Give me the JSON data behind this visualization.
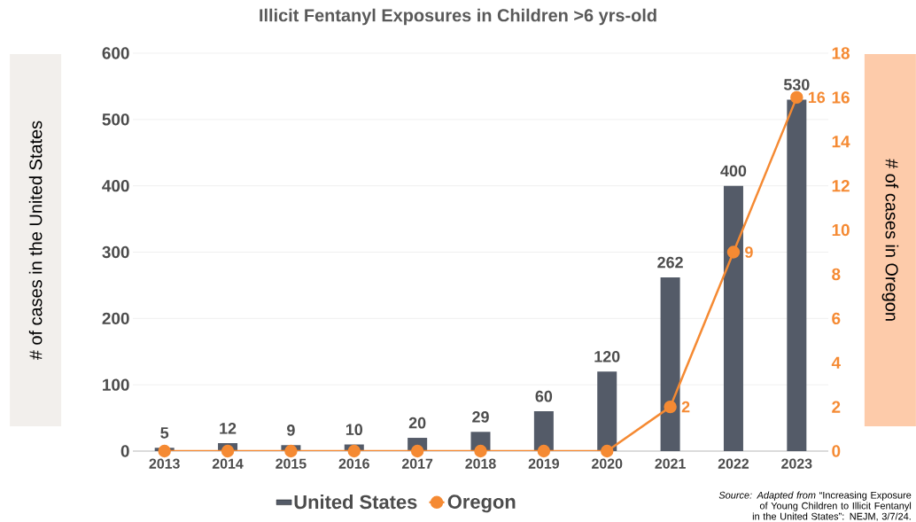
{
  "chart_data": {
    "type": "bar",
    "title": "Illicit Fentanyl Exposures in Children >6 yrs-old",
    "categories": [
      "2013",
      "2014",
      "2015",
      "2016",
      "2017",
      "2018",
      "2019",
      "2020",
      "2021",
      "2022",
      "2023"
    ],
    "series": [
      {
        "name": "United States",
        "color": "#545b68",
        "values": [
          5,
          12,
          9,
          10,
          20,
          29,
          60,
          120,
          262,
          400,
          530
        ],
        "value_labels": [
          "5",
          "12",
          "9",
          "10",
          "20",
          "29",
          "60",
          "120",
          "262",
          "400",
          "530"
        ]
      },
      {
        "name": "Oregon",
        "type": "line",
        "axis": "y2",
        "color": "#f58a33",
        "marker": "circle",
        "values": [
          0,
          0,
          0,
          0,
          0,
          0,
          0,
          0,
          2,
          9,
          16
        ],
        "value_labels": [
          null,
          null,
          null,
          null,
          null,
          null,
          null,
          null,
          "2",
          "9",
          "16"
        ]
      }
    ],
    "ylabel": "# of cases in the United States",
    "y2label": "# of cases in Oregon",
    "ylim": [
      0,
      600
    ],
    "yticks": [
      0,
      100,
      200,
      300,
      400,
      500,
      600
    ],
    "y2lim": [
      0,
      18
    ],
    "y2ticks": [
      0,
      2,
      4,
      6,
      8,
      10,
      12,
      14,
      16,
      18
    ],
    "grid": "y",
    "legend": "bottom",
    "annotations": [
      "*Source: Adapted from* “Increasing Exposure of Young Children to Illicit Fentanyl in the United States”: NEJM, 3/7/24."
    ]
  }
}
